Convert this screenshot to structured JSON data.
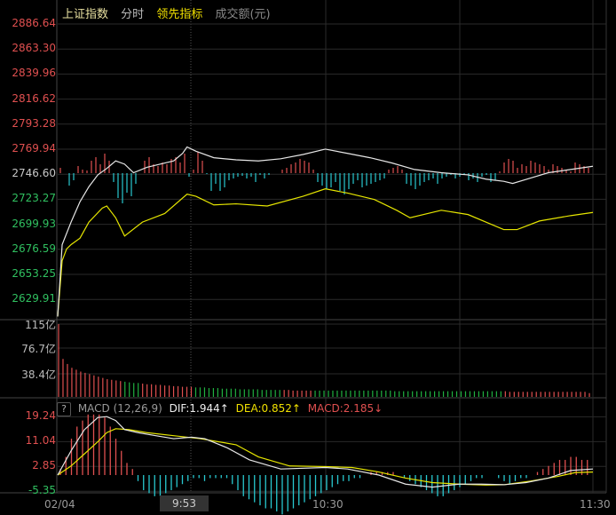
{
  "header": {
    "index_name": "上证指数",
    "view": "分时",
    "indicator": "领先指标",
    "volume_unit": "成交额(元)"
  },
  "colors": {
    "up": "#e05050",
    "down": "#28c8d0",
    "price_line": "#e6e6e6",
    "avg_line": "#e6e600",
    "grid": "#2a2a2a",
    "vol_up": "#e05050",
    "vol_down": "#20b040"
  },
  "price_axis": {
    "labels": [
      "2886.64",
      "2863.30",
      "2839.96",
      "2816.62",
      "2793.28",
      "2769.94",
      "2746.60",
      "2723.27",
      "2699.93",
      "2676.59",
      "2653.25",
      "2629.91"
    ],
    "prev_close": 2746.6,
    "step": 23.34
  },
  "volume_axis": {
    "labels": [
      "115亿",
      "76.7亿",
      "38.4亿"
    ]
  },
  "macd": {
    "name": "MACD (12,26,9)",
    "help": "?",
    "dif": "DIF:1.944↑",
    "dea": "DEA:0.852↑",
    "macd": "MACD:2.185↓",
    "labels": [
      "19.24",
      "11.04",
      "2.85",
      "-5.35"
    ]
  },
  "time_axis": {
    "start": "02/04",
    "cursor": "9:53",
    "mid": "10:30",
    "end": "11:30"
  },
  "chart_data": {
    "type": "line",
    "x_unit": "minutes since 9:30",
    "price": [
      [
        0,
        2613
      ],
      [
        1,
        2680
      ],
      [
        3,
        2701
      ],
      [
        5,
        2720
      ],
      [
        7,
        2734
      ],
      [
        9,
        2745
      ],
      [
        11,
        2751
      ],
      [
        13,
        2758
      ],
      [
        15,
        2755
      ],
      [
        17,
        2747
      ],
      [
        20,
        2752
      ],
      [
        23,
        2755
      ],
      [
        26,
        2758
      ],
      [
        28,
        2765
      ],
      [
        29,
        2771
      ],
      [
        31,
        2767
      ],
      [
        35,
        2761
      ],
      [
        40,
        2759
      ],
      [
        45,
        2758
      ],
      [
        50,
        2760
      ],
      [
        55,
        2764
      ],
      [
        60,
        2769
      ],
      [
        65,
        2765
      ],
      [
        70,
        2761
      ],
      [
        75,
        2756
      ],
      [
        80,
        2750
      ],
      [
        86,
        2747
      ],
      [
        92,
        2745
      ],
      [
        96,
        2741
      ],
      [
        100,
        2739
      ],
      [
        102,
        2737
      ],
      [
        106,
        2742
      ],
      [
        110,
        2747
      ],
      [
        115,
        2750
      ],
      [
        120,
        2753
      ]
    ],
    "avg_price": [
      [
        0,
        2613
      ],
      [
        1,
        2665
      ],
      [
        2,
        2676
      ],
      [
        3,
        2680
      ],
      [
        5,
        2686
      ],
      [
        7,
        2701
      ],
      [
        10,
        2714
      ],
      [
        11,
        2716
      ],
      [
        13,
        2705
      ],
      [
        15,
        2688
      ],
      [
        19,
        2701
      ],
      [
        24,
        2709
      ],
      [
        29,
        2727
      ],
      [
        31,
        2725
      ],
      [
        35,
        2717
      ],
      [
        40,
        2718
      ],
      [
        47,
        2716
      ],
      [
        55,
        2725
      ],
      [
        60,
        2732
      ],
      [
        65,
        2728
      ],
      [
        71,
        2722
      ],
      [
        76,
        2712
      ],
      [
        79,
        2705
      ],
      [
        86,
        2712
      ],
      [
        92,
        2708
      ],
      [
        100,
        2694
      ],
      [
        103,
        2694
      ],
      [
        108,
        2702
      ],
      [
        115,
        2707
      ],
      [
        120,
        2710
      ]
    ],
    "leading_bars": [
      6,
      0,
      -14,
      -8,
      8,
      4,
      3,
      14,
      18,
      10,
      22,
      14,
      -10,
      -28,
      -34,
      -22,
      -26,
      -12,
      0,
      14,
      18,
      10,
      8,
      12,
      10,
      16,
      18,
      12,
      22,
      -4,
      4,
      24,
      14,
      -1,
      -20,
      -12,
      -20,
      -16,
      -8,
      -6,
      -4,
      -3,
      -6,
      -4,
      -10,
      -2,
      -6,
      -2,
      0,
      0,
      4,
      6,
      10,
      12,
      16,
      14,
      12,
      4,
      -10,
      -14,
      -18,
      -16,
      -10,
      -20,
      -24,
      -18,
      -12,
      -8,
      -16,
      -14,
      -12,
      -10,
      -8,
      -6,
      4,
      6,
      8,
      4,
      -12,
      -14,
      -18,
      -14,
      -10,
      -8,
      -6,
      -12,
      -6,
      -4,
      -2,
      -6,
      -4,
      -2,
      -8,
      -6,
      -10,
      -4,
      -2,
      -10,
      -8,
      2,
      12,
      16,
      14,
      6,
      10,
      8,
      14,
      12,
      10,
      8,
      4,
      10,
      8,
      6,
      4,
      2,
      12,
      10,
      8,
      6
    ],
    "volume_yi": [
      115,
      60,
      52,
      46,
      43,
      40,
      38,
      36,
      34,
      32,
      30,
      28,
      27,
      26,
      25,
      24,
      23,
      22,
      22,
      21,
      20,
      20,
      19,
      19,
      18,
      18,
      17,
      17,
      16,
      16,
      16,
      15,
      15,
      15,
      14,
      14,
      14,
      13,
      13,
      13,
      13,
      12,
      12,
      12,
      12,
      12,
      11,
      11,
      11,
      11,
      11,
      11,
      11,
      10,
      10,
      10,
      10,
      10,
      10,
      10,
      10,
      10,
      10,
      10,
      10,
      10,
      10,
      10,
      10,
      10,
      10,
      10,
      10,
      10,
      10,
      10,
      9,
      9,
      9,
      9,
      9,
      9,
      9,
      9,
      9,
      9,
      9,
      9,
      9,
      9,
      9,
      9,
      9,
      9,
      9,
      9,
      9,
      9,
      9,
      9,
      9,
      9,
      8,
      8,
      8,
      8,
      8,
      8,
      8,
      8,
      8,
      8,
      8,
      8,
      8,
      8,
      8,
      8,
      8,
      8,
      6
    ],
    "volume_up": [
      1,
      1,
      1,
      1,
      1,
      1,
      1,
      1,
      1,
      1,
      1,
      1,
      1,
      1,
      1,
      0,
      0,
      0,
      0,
      1,
      1,
      1,
      1,
      1,
      1,
      1,
      1,
      1,
      1,
      1,
      1,
      0,
      0,
      0,
      0,
      0,
      0,
      0,
      0,
      0,
      0,
      0,
      0,
      0,
      0,
      0,
      0,
      0,
      0,
      0,
      0,
      1,
      1,
      1,
      1,
      1,
      1,
      1,
      0,
      0,
      0,
      0,
      0,
      0,
      0,
      0,
      0,
      0,
      0,
      0,
      0,
      0,
      0,
      0,
      0,
      0,
      0,
      0,
      0,
      0,
      0,
      0,
      0,
      0,
      0,
      0,
      0,
      0,
      0,
      0,
      0,
      0,
      0,
      0,
      0,
      0,
      0,
      0,
      0,
      0,
      0,
      1,
      1,
      1,
      1,
      1,
      1,
      1,
      1,
      1,
      1,
      1,
      1,
      1,
      1,
      1,
      1,
      1,
      1,
      1,
      1
    ],
    "dif": [
      [
        0,
        0
      ],
      [
        3,
        8
      ],
      [
        6,
        15
      ],
      [
        9,
        19
      ],
      [
        11,
        19.3
      ],
      [
        13,
        18
      ],
      [
        15,
        15
      ],
      [
        18,
        14
      ],
      [
        22,
        13
      ],
      [
        26,
        12
      ],
      [
        30,
        12.5
      ],
      [
        33,
        12
      ],
      [
        38,
        9
      ],
      [
        43,
        5
      ],
      [
        50,
        2
      ],
      [
        60,
        2.5
      ],
      [
        65,
        2
      ],
      [
        72,
        0
      ],
      [
        78,
        -3
      ],
      [
        84,
        -4
      ],
      [
        90,
        -3
      ],
      [
        95,
        -3
      ],
      [
        100,
        -3.2
      ],
      [
        105,
        -2.5
      ],
      [
        110,
        -1
      ],
      [
        115,
        1.5
      ],
      [
        120,
        2
      ]
    ],
    "dea": [
      [
        0,
        0
      ],
      [
        3,
        3
      ],
      [
        6,
        7
      ],
      [
        9,
        11
      ],
      [
        11,
        14
      ],
      [
        13,
        15.3
      ],
      [
        16,
        15
      ],
      [
        20,
        14
      ],
      [
        26,
        13
      ],
      [
        32,
        12
      ],
      [
        40,
        10
      ],
      [
        45,
        6
      ],
      [
        52,
        3
      ],
      [
        60,
        2.8
      ],
      [
        66,
        2.5
      ],
      [
        72,
        1
      ],
      [
        78,
        -1
      ],
      [
        84,
        -2.5
      ],
      [
        90,
        -3
      ],
      [
        96,
        -3.3
      ],
      [
        100,
        -3.2
      ],
      [
        106,
        -2
      ],
      [
        112,
        -0.5
      ],
      [
        116,
        0.8
      ],
      [
        120,
        1
      ]
    ],
    "macd_bars": [
      2,
      6,
      12,
      16,
      18,
      20,
      20,
      20,
      19,
      16,
      12,
      8,
      4,
      2,
      -2,
      -5,
      -6,
      -7,
      -7,
      -6,
      -5,
      -4,
      -3,
      -2,
      -1,
      -1,
      -2,
      -1,
      -1,
      -1,
      -1,
      -3,
      -5,
      -7,
      -8,
      -9,
      -10,
      -11,
      -11,
      -12,
      -13,
      -12,
      -11,
      -10,
      -9,
      -8,
      -7,
      -6,
      -5,
      -4,
      -3,
      -2,
      -2,
      -1,
      -1,
      0,
      1,
      1,
      1,
      1,
      1,
      0,
      -1,
      -2,
      -3,
      -4,
      -5,
      -6,
      -7,
      -7,
      -6,
      -5,
      -4,
      -3,
      -2,
      -1,
      -1,
      0,
      0,
      -1,
      -2,
      -3,
      -2,
      -1,
      -1,
      0,
      1,
      2,
      3,
      4,
      5,
      5,
      6,
      6,
      5,
      5
    ]
  }
}
